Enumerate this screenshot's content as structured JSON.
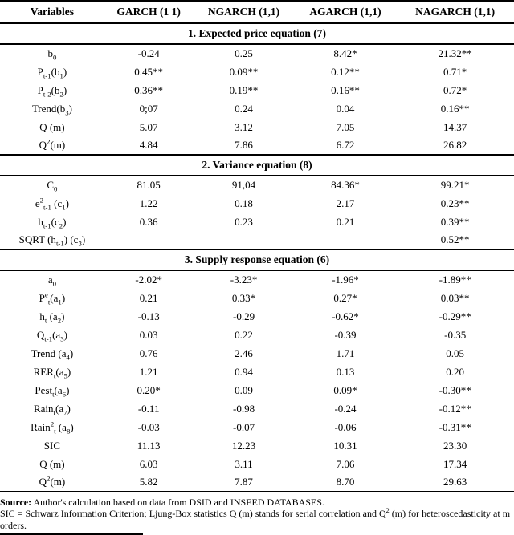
{
  "page": {
    "background": "#ffffff",
    "text_color": "#000000"
  },
  "table": {
    "headers": [
      "Variables",
      "GARCH (1 1)",
      "NGARCH (1,1)",
      "AGARCH (1,1)",
      "NAGARCH (1,1)"
    ],
    "sections": [
      {
        "title": "1. Expected price equation (7)",
        "rows": [
          {
            "label": "b_{0}",
            "values": [
              "-0.24",
              "0.25",
              "8.42*",
              "21.32**"
            ]
          },
          {
            "label": "P_{t-1}(b_{1})",
            "values": [
              "0.45**",
              "0.09**",
              "0.12**",
              "0.71*"
            ]
          },
          {
            "label": "P_{t-2}(b_{2})",
            "values": [
              "0.36**",
              "0.19**",
              "0.16**",
              "0.72*"
            ]
          },
          {
            "label": "Trend(b_{3})",
            "values": [
              "0;07",
              "0.24",
              "0.04",
              "0.16**"
            ]
          },
          {
            "label": "Q (m)",
            "values": [
              "5.07",
              "3.12",
              "7.05",
              "14.37"
            ]
          },
          {
            "label": "Q^{2}(m)",
            "values": [
              "4.84",
              "7.86",
              "6.72",
              "26.82"
            ]
          }
        ]
      },
      {
        "title": "2. Variance equation (8)",
        "rows": [
          {
            "label": "C_{0}",
            "values": [
              "81.05",
              "91,04",
              "84.36*",
              "99.21*"
            ]
          },
          {
            "label": "e^{2}_{t-1} (c_{1})",
            "values": [
              "1.22",
              "0.18",
              "2.17",
              "0.23**"
            ]
          },
          {
            "label": "h_{t-1}(c_{2})",
            "values": [
              "0.36",
              "0.23",
              "0.21",
              "0.39**"
            ]
          },
          {
            "label": "SQRT (h_{t-1}) (c_{3})",
            "values": [
              "",
              "",
              "",
              "0.52**"
            ]
          }
        ]
      },
      {
        "title": "3. Supply response equation (6)",
        "rows": [
          {
            "label": "a_{0}",
            "values": [
              "-2.02*",
              "-3.23*",
              "-1.96*",
              "-1.89**"
            ]
          },
          {
            "label": "P^{e}_{t}(a_{1})",
            "values": [
              "0.21",
              "0.33*",
              "0.27*",
              "0.03**"
            ]
          },
          {
            "label": "h_{t} (a_{2})",
            "values": [
              "-0.13",
              "-0.29",
              "-0.62*",
              "-0.29**"
            ]
          },
          {
            "label": "Q_{t-1}(a_{3})",
            "values": [
              "0.03",
              "0.22",
              "-0.39",
              "-0.35"
            ]
          },
          {
            "label": "Trend (a_{4})",
            "values": [
              "0.76",
              "2.46",
              "1.71",
              "0.05"
            ]
          },
          {
            "label": "RER_{t}(a_{5})",
            "values": [
              "1.21",
              "0.94",
              "0.13",
              "0.20"
            ]
          },
          {
            "label": "Pest_{t}(a_{6})",
            "values": [
              "0.20*",
              "0.09",
              "0.09*",
              "-0.30**"
            ]
          },
          {
            "label": "Rain_{t}(a_{7})",
            "values": [
              "-0.11",
              "-0.98",
              "-0.24",
              "-0.12**"
            ]
          },
          {
            "label": "Rain^{2}_{t} (a_{8})",
            "values": [
              "-0.03",
              "-0.07",
              "-0.06",
              "-0.31**"
            ]
          },
          {
            "label": "SIC",
            "values": [
              "11.13",
              "12.23",
              "10.31",
              "23.30"
            ]
          },
          {
            "label": "Q (m)",
            "values": [
              "6.03",
              "3.11",
              "7.06",
              "17.34"
            ]
          },
          {
            "label": "Q^{2}(m)",
            "values": [
              "5.82",
              "7.87",
              "8.70",
              "29.63"
            ]
          }
        ]
      }
    ]
  },
  "footnotes": {
    "source_label": "Source:",
    "source_text": " Author's calculation based on data from DSID and INSEED DATABASES.",
    "note": "SIC = Schwarz Information Criterion; Ljung-Box statistics Q (m) stands for serial correlation and Q^{2} (m) for heteroscedasticity at m orders."
  }
}
